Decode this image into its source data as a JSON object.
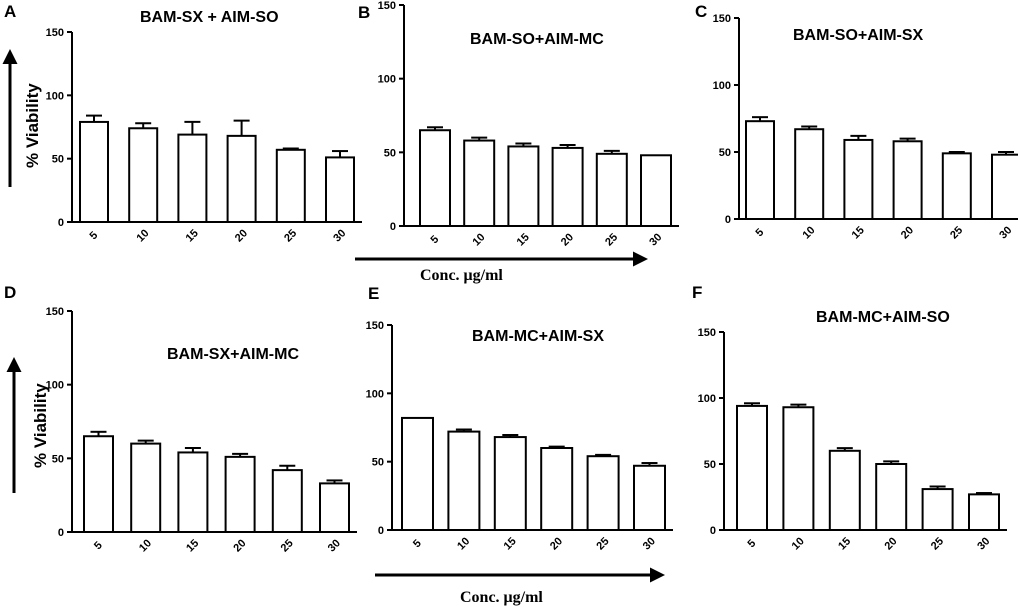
{
  "chart_data": [
    {
      "panel": "A",
      "type": "bar",
      "title": "BAM-SX + AIM-SO",
      "categories": [
        "5",
        "10",
        "15",
        "20",
        "25",
        "30"
      ],
      "values": [
        79,
        74,
        69,
        68,
        57,
        51
      ],
      "errors": [
        5,
        4,
        10,
        12,
        1,
        5
      ],
      "ylim": [
        0,
        150
      ],
      "yticks": [
        "0",
        "50",
        "100",
        "150"
      ]
    },
    {
      "panel": "B",
      "type": "bar",
      "title": "BAM-SO+AIM-MC",
      "categories": [
        "5",
        "10",
        "15",
        "20",
        "25",
        "30"
      ],
      "values": [
        65,
        58,
        54,
        53,
        49,
        48
      ],
      "errors": [
        2,
        2,
        2,
        2,
        2,
        0
      ],
      "ylim": [
        0,
        150
      ],
      "yticks": [
        "0",
        "50",
        "100",
        "150"
      ]
    },
    {
      "panel": "C",
      "type": "bar",
      "title": "BAM-SO+AIM-SX",
      "categories": [
        "5",
        "10",
        "15",
        "20",
        "25",
        "30"
      ],
      "values": [
        73,
        67,
        59,
        58,
        49,
        48
      ],
      "errors": [
        3,
        2,
        3,
        2,
        1,
        2
      ],
      "ylim": [
        0,
        150
      ],
      "yticks": [
        "0",
        "50",
        "100",
        "150"
      ]
    },
    {
      "panel": "D",
      "type": "bar",
      "title": "BAM-SX+AIM-MC",
      "categories": [
        "5",
        "10",
        "15",
        "20",
        "25",
        "30"
      ],
      "values": [
        65,
        60,
        54,
        51,
        42,
        33
      ],
      "errors": [
        3,
        2,
        3,
        2,
        3,
        2
      ],
      "ylim": [
        0,
        150
      ],
      "yticks": [
        "0",
        "50",
        "100",
        "150"
      ]
    },
    {
      "panel": "E",
      "type": "bar",
      "title": "BAM-MC+AIM-SX",
      "categories": [
        "5",
        "10",
        "15",
        "20",
        "25",
        "30"
      ],
      "values": [
        82,
        72,
        68,
        60,
        54,
        47
      ],
      "errors": [
        0,
        1.5,
        1.5,
        1,
        1,
        2
      ],
      "ylim": [
        0,
        150
      ],
      "yticks": [
        "0",
        "50",
        "100",
        "150"
      ]
    },
    {
      "panel": "F",
      "type": "bar",
      "title": "BAM-MC+AIM-SO",
      "categories": [
        "5",
        "10",
        "15",
        "20",
        "25",
        "30"
      ],
      "values": [
        94,
        93,
        60,
        50,
        31,
        27
      ],
      "errors": [
        2,
        2,
        2,
        2,
        2,
        1
      ],
      "ylim": [
        0,
        150
      ],
      "yticks": [
        "0",
        "50",
        "100",
        "150"
      ]
    }
  ],
  "labels": {
    "y_label_top": "% Viability",
    "y_label_bottom": "% Viability",
    "x_label_top": "Conc. μg/ml",
    "x_label_bottom": "Conc. μg/ml"
  }
}
